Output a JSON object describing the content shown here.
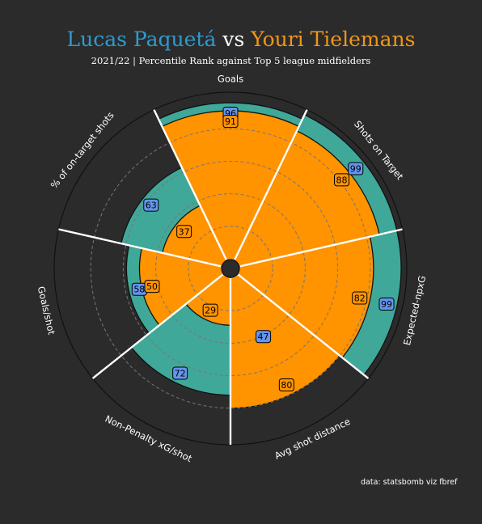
{
  "title": {
    "player_a": "Lucas Paquetá",
    "vs": "vs",
    "player_b": "Youri Tielemans"
  },
  "subtitle": "2021/22 | Percentile Rank against Top 5 league midfielders",
  "credit": "data: statsbomb viz fbref",
  "colors": {
    "background": "#2b2b2b",
    "player_a": "#2e9acf",
    "player_b": "#f0961a",
    "player_a_fill": "#3fa898",
    "player_b_fill": "#ff9300",
    "player_a_badge": "#6495ed",
    "player_b_badge": "#ff9300",
    "separator": "#ffffff",
    "grid": "#777777"
  },
  "chart_data": {
    "type": "radar",
    "subtype": "pizza",
    "title": "Lucas Paquetá vs Youri Tielemans",
    "subtitle": "2021/22 | Percentile Rank against Top 5 league midfielders",
    "ylim": [
      0,
      100
    ],
    "categories": [
      "Goals",
      "Shots on Target",
      "Expected-npxG",
      "Avg shot distance",
      "Non-Penalty xG/shot",
      "Goals/shot",
      "% of on-target shots"
    ],
    "series": [
      {
        "name": "Lucas Paquetá",
        "values": [
          96,
          99,
          99,
          47,
          72,
          58,
          63
        ]
      },
      {
        "name": "Youri Tielemans",
        "values": [
          91,
          88,
          82,
          80,
          29,
          50,
          37
        ]
      }
    ]
  }
}
